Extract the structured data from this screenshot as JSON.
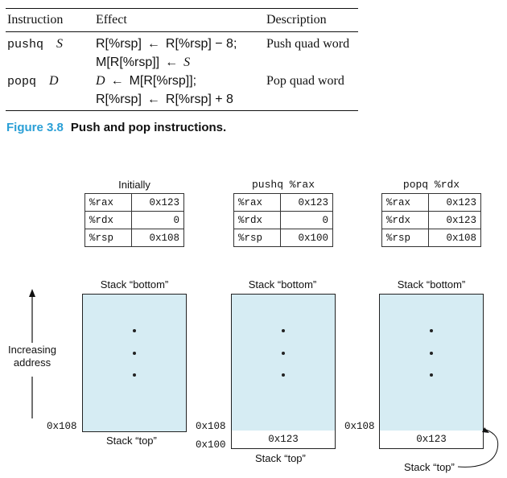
{
  "instruction_table": {
    "headers": {
      "instruction": "Instruction",
      "effect": "Effect",
      "description": "Description"
    },
    "rows": [
      {
        "mnemonic": "pushq",
        "operand": "S",
        "effect_lines": [
          {
            "lhs": "R[%rsp]",
            "arrow": "←",
            "rhs": "R[%rsp] − 8;"
          },
          {
            "lhs": "M[R[%rsp]]",
            "arrow": "←",
            "rhs": "S"
          }
        ],
        "description": "Push quad word"
      },
      {
        "mnemonic": "popq",
        "operand": "D",
        "effect_lines": [
          {
            "lhs": "D",
            "arrow": "←",
            "rhs": "M[R[%rsp]];"
          },
          {
            "lhs": "R[%rsp]",
            "arrow": "←",
            "rhs": "R[%rsp] + 8"
          }
        ],
        "description": "Pop quad word"
      }
    ]
  },
  "caption": {
    "number": "Figure 3.8",
    "text": "Push and pop instructions."
  },
  "register_tables": [
    {
      "title": "Initially",
      "rows": [
        {
          "reg": "%rax",
          "value": "0x123"
        },
        {
          "reg": "%rdx",
          "value": "0"
        },
        {
          "reg": "%rsp",
          "value": "0x108"
        }
      ]
    },
    {
      "title": "pushq %rax",
      "rows": [
        {
          "reg": "%rax",
          "value": "0x123"
        },
        {
          "reg": "%rdx",
          "value": "0"
        },
        {
          "reg": "%rsp",
          "value": "0x100"
        }
      ]
    },
    {
      "title": "popq %rdx",
      "rows": [
        {
          "reg": "%rax",
          "value": "0x123"
        },
        {
          "reg": "%rdx",
          "value": "0x123"
        },
        {
          "reg": "%rsp",
          "value": "0x108"
        }
      ]
    }
  ],
  "stacks": [
    {
      "bottom_label": "Stack “bottom”",
      "top_label": "Stack “top”",
      "addr_108": "0x108"
    },
    {
      "bottom_label": "Stack “bottom”",
      "top_label": "Stack “top”",
      "addr_108": "0x108",
      "addr_100": "0x100",
      "slot_value": "0x123"
    },
    {
      "bottom_label": "Stack “bottom”",
      "top_label": "Stack “top”",
      "addr_108": "0x108",
      "slot_value": "0x123"
    }
  ],
  "axis": {
    "line1": "Increasing",
    "line2": "address"
  }
}
